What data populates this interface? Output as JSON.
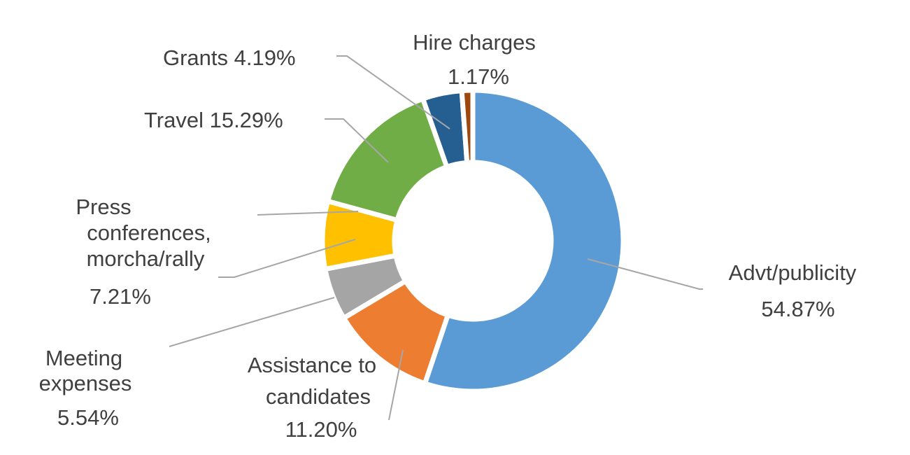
{
  "chart_data": {
    "type": "pie",
    "variant": "donut",
    "title": "",
    "legend": "none",
    "slices": [
      {
        "label": "Advt/publicity",
        "value": 54.87,
        "display": "54.87%",
        "color": "#5b9bd5"
      },
      {
        "label": "Assistance to candidates",
        "value": 11.2,
        "display": "11.20%",
        "color": "#ed7d31"
      },
      {
        "label": "Meeting expenses",
        "value": 5.54,
        "display": "5.54%",
        "color": "#a5a5a5"
      },
      {
        "label": "Press conferences, morcha/rally",
        "value": 7.21,
        "display": "7.21%",
        "color": "#ffc000"
      },
      {
        "label": "Travel",
        "value": 15.29,
        "display": "15.29%",
        "color": "#70ad47"
      },
      {
        "label": "Grants",
        "value": 4.19,
        "display": "4.19%",
        "color": "#255e91"
      },
      {
        "label": "Hire charges",
        "value": 1.17,
        "display": "1.17%",
        "color": "#9e480e"
      }
    ]
  },
  "labels": {
    "advt_name": "Advt/publicity",
    "advt_pct": "54.87%",
    "assist_line1": "Assistance to",
    "assist_line2": "candidates",
    "assist_pct": "11.20%",
    "meeting_line1": "Meeting",
    "meeting_line2": "expenses",
    "meeting_pct": "5.54%",
    "press_line1": "Press",
    "press_line2": "conferences,",
    "press_line3": "morcha/rally",
    "press_pct": "7.21%",
    "travel": "Travel  15.29%",
    "grants": "Grants  4.19%",
    "hire_name": "Hire charges",
    "hire_pct": "1.17%"
  }
}
